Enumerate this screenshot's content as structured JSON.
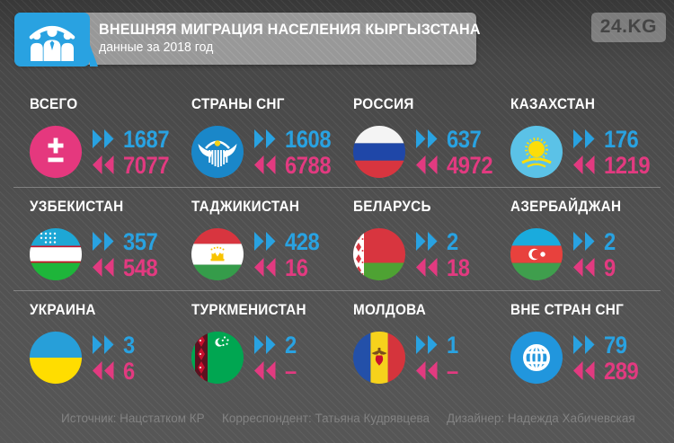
{
  "header": {
    "title": "ВНЕШНЯЯ МИГРАЦИЯ НАСЕЛЕНИЯ КЫРГЫЗСТАНА",
    "subtitle": "данные за 2018 год",
    "brand": "24.KG"
  },
  "colors": {
    "inflow_blue": "#29a2e1",
    "outflow_pink": "#e23a80",
    "header_blue": "#29a2e1"
  },
  "items": [
    {
      "label": "ВСЕГО",
      "icon": "plus-minus",
      "inflow": "1687",
      "outflow": "7077"
    },
    {
      "label": "СТРАНЫ СНГ",
      "icon": "cis-emblem",
      "inflow": "1608",
      "outflow": "6788"
    },
    {
      "label": "РОССИЯ",
      "icon": "flag-russia",
      "inflow": "637",
      "outflow": "4972"
    },
    {
      "label": "КАЗАХСТАН",
      "icon": "flag-kazakhstan",
      "inflow": "176",
      "outflow": "1219"
    },
    {
      "label": "УЗБЕКИСТАН",
      "icon": "flag-uzbekistan",
      "inflow": "357",
      "outflow": "548"
    },
    {
      "label": "ТАДЖИКИСТАН",
      "icon": "flag-tajikistan",
      "inflow": "428",
      "outflow": "16"
    },
    {
      "label": "БЕЛАРУСЬ",
      "icon": "flag-belarus",
      "inflow": "2",
      "outflow": "18"
    },
    {
      "label": "АЗЕРБАЙДЖАН",
      "icon": "flag-azerbaijan",
      "inflow": "2",
      "outflow": "9"
    },
    {
      "label": "УКРАИНА",
      "icon": "flag-ukraine",
      "inflow": "3",
      "outflow": "6"
    },
    {
      "label": "ТУРКМЕНИСТАН",
      "icon": "flag-turkmenistan",
      "inflow": "2",
      "outflow": "–"
    },
    {
      "label": "МОЛДОВА",
      "icon": "flag-moldova",
      "inflow": "1",
      "outflow": "–"
    },
    {
      "label": "ВНЕ СТРАН СНГ",
      "icon": "globe",
      "inflow": "79",
      "outflow": "289"
    }
  ],
  "footer": {
    "source": "Источник: Нацстатком КР",
    "correspondent": "Корреспондент: Татьяна Кудрявцева",
    "designer": "Дизайнер: Надежда Хабичевская"
  },
  "chart_data": {
    "type": "table",
    "title": "ВНЕШНЯЯ МИГРАЦИЯ НАСЕЛЕНИЯ КЫРГЫЗСТАНА",
    "subtitle": "данные за 2018 год",
    "categories": [
      "ВСЕГО",
      "СТРАНЫ СНГ",
      "РОССИЯ",
      "КАЗАХСТАН",
      "УЗБЕКИСТАН",
      "ТАДЖИКИСТАН",
      "БЕЛАРУСЬ",
      "АЗЕРБАЙДЖАН",
      "УКРАИНА",
      "ТУРКМЕНИСТАН",
      "МОЛДОВА",
      "ВНЕ СТРАН СНГ"
    ],
    "series": [
      {
        "name": "прибыло (синие стрелки)",
        "values": [
          1687,
          1608,
          637,
          176,
          357,
          428,
          2,
          2,
          3,
          2,
          1,
          79
        ]
      },
      {
        "name": "выбыло (розовые стрелки)",
        "values": [
          7077,
          6788,
          4972,
          1219,
          548,
          16,
          18,
          9,
          6,
          null,
          null,
          289
        ]
      }
    ],
    "legend_position": "none",
    "grid": false
  }
}
